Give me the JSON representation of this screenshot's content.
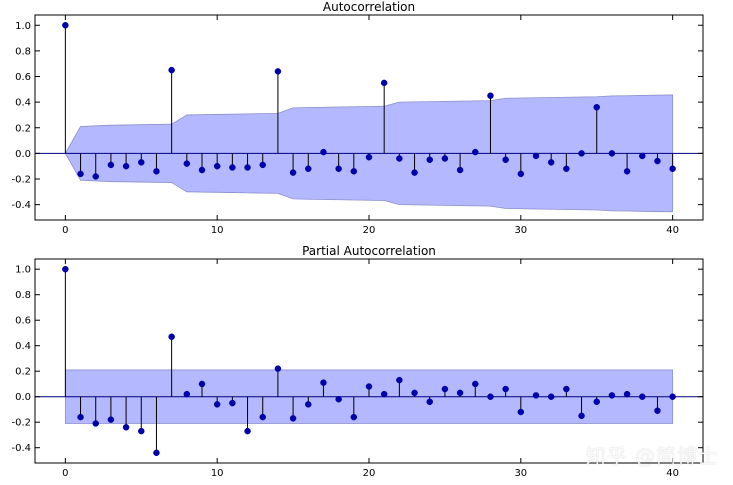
{
  "chart_data": [
    {
      "type": "stem",
      "title": "Autocorrelation",
      "x": [
        0,
        1,
        2,
        3,
        4,
        5,
        6,
        7,
        8,
        9,
        10,
        11,
        12,
        13,
        14,
        15,
        16,
        17,
        18,
        19,
        20,
        21,
        22,
        23,
        24,
        25,
        26,
        27,
        28,
        29,
        30,
        31,
        32,
        33,
        34,
        35,
        36,
        37,
        38,
        39,
        40
      ],
      "values": [
        1.0,
        -0.16,
        -0.18,
        -0.09,
        -0.1,
        -0.07,
        -0.14,
        0.65,
        -0.08,
        -0.13,
        -0.1,
        -0.11,
        -0.11,
        -0.09,
        0.64,
        -0.15,
        -0.12,
        0.01,
        -0.12,
        -0.14,
        -0.03,
        0.55,
        -0.04,
        -0.15,
        -0.05,
        -0.04,
        -0.13,
        0.01,
        0.45,
        -0.05,
        -0.16,
        -0.02,
        -0.07,
        -0.12,
        0.0,
        0.36,
        0.0,
        -0.14,
        -0.02,
        -0.06,
        -0.12
      ],
      "confint": [
        0.0,
        0.21,
        0.215,
        0.22,
        0.222,
        0.224,
        0.226,
        0.228,
        0.3,
        0.302,
        0.304,
        0.306,
        0.308,
        0.31,
        0.312,
        0.355,
        0.358,
        0.36,
        0.362,
        0.364,
        0.366,
        0.368,
        0.4,
        0.402,
        0.404,
        0.406,
        0.408,
        0.41,
        0.412,
        0.43,
        0.432,
        0.434,
        0.436,
        0.438,
        0.44,
        0.442,
        0.449,
        0.45,
        0.452,
        0.454,
        0.456
      ],
      "xlim": [
        -2,
        42
      ],
      "ylim": [
        -0.52,
        1.08
      ],
      "xticks": [
        0,
        10,
        20,
        30,
        40
      ],
      "yticks": [
        -0.4,
        -0.2,
        0.0,
        0.2,
        0.4,
        0.6,
        0.8,
        1.0
      ],
      "grid": false
    },
    {
      "type": "stem",
      "title": "Partial Autocorrelation",
      "x": [
        0,
        1,
        2,
        3,
        4,
        5,
        6,
        7,
        8,
        9,
        10,
        11,
        12,
        13,
        14,
        15,
        16,
        17,
        18,
        19,
        20,
        21,
        22,
        23,
        24,
        25,
        26,
        27,
        28,
        29,
        30,
        31,
        32,
        33,
        34,
        35,
        36,
        37,
        38,
        39,
        40
      ],
      "values": [
        1.0,
        -0.16,
        -0.21,
        -0.18,
        -0.24,
        -0.27,
        -0.44,
        0.47,
        0.02,
        0.1,
        -0.06,
        -0.05,
        -0.27,
        -0.16,
        0.22,
        -0.17,
        -0.06,
        0.11,
        -0.02,
        -0.16,
        0.08,
        0.02,
        0.13,
        0.03,
        -0.04,
        0.06,
        0.03,
        0.1,
        0.0,
        0.06,
        -0.12,
        0.01,
        0.0,
        0.06,
        -0.15,
        -0.04,
        0.01,
        0.02,
        0.0,
        -0.11,
        0.0
      ],
      "confint": [
        0.21,
        0.21,
        0.21,
        0.21,
        0.21,
        0.21,
        0.21,
        0.21,
        0.21,
        0.21,
        0.21,
        0.21,
        0.21,
        0.21,
        0.21,
        0.21,
        0.21,
        0.21,
        0.21,
        0.21,
        0.21,
        0.21,
        0.21,
        0.21,
        0.21,
        0.21,
        0.21,
        0.21,
        0.21,
        0.21,
        0.21,
        0.21,
        0.21,
        0.21,
        0.21,
        0.21,
        0.21,
        0.21,
        0.21,
        0.21,
        0.21
      ],
      "xlim": [
        -2,
        42
      ],
      "ylim": [
        -0.52,
        1.08
      ],
      "xticks": [
        0,
        10,
        20,
        30,
        40
      ],
      "yticks": [
        -0.4,
        -0.2,
        0.0,
        0.2,
        0.4,
        0.6,
        0.8,
        1.0
      ],
      "grid": false
    }
  ],
  "style": {
    "marker_color": "#0000AA",
    "stem_color": "#000000",
    "band_fill": "#B3B8FF",
    "band_edge": "#8B90CC",
    "zero_line": "#000080"
  },
  "watermark": {
    "text": "知乎 @简博士"
  }
}
